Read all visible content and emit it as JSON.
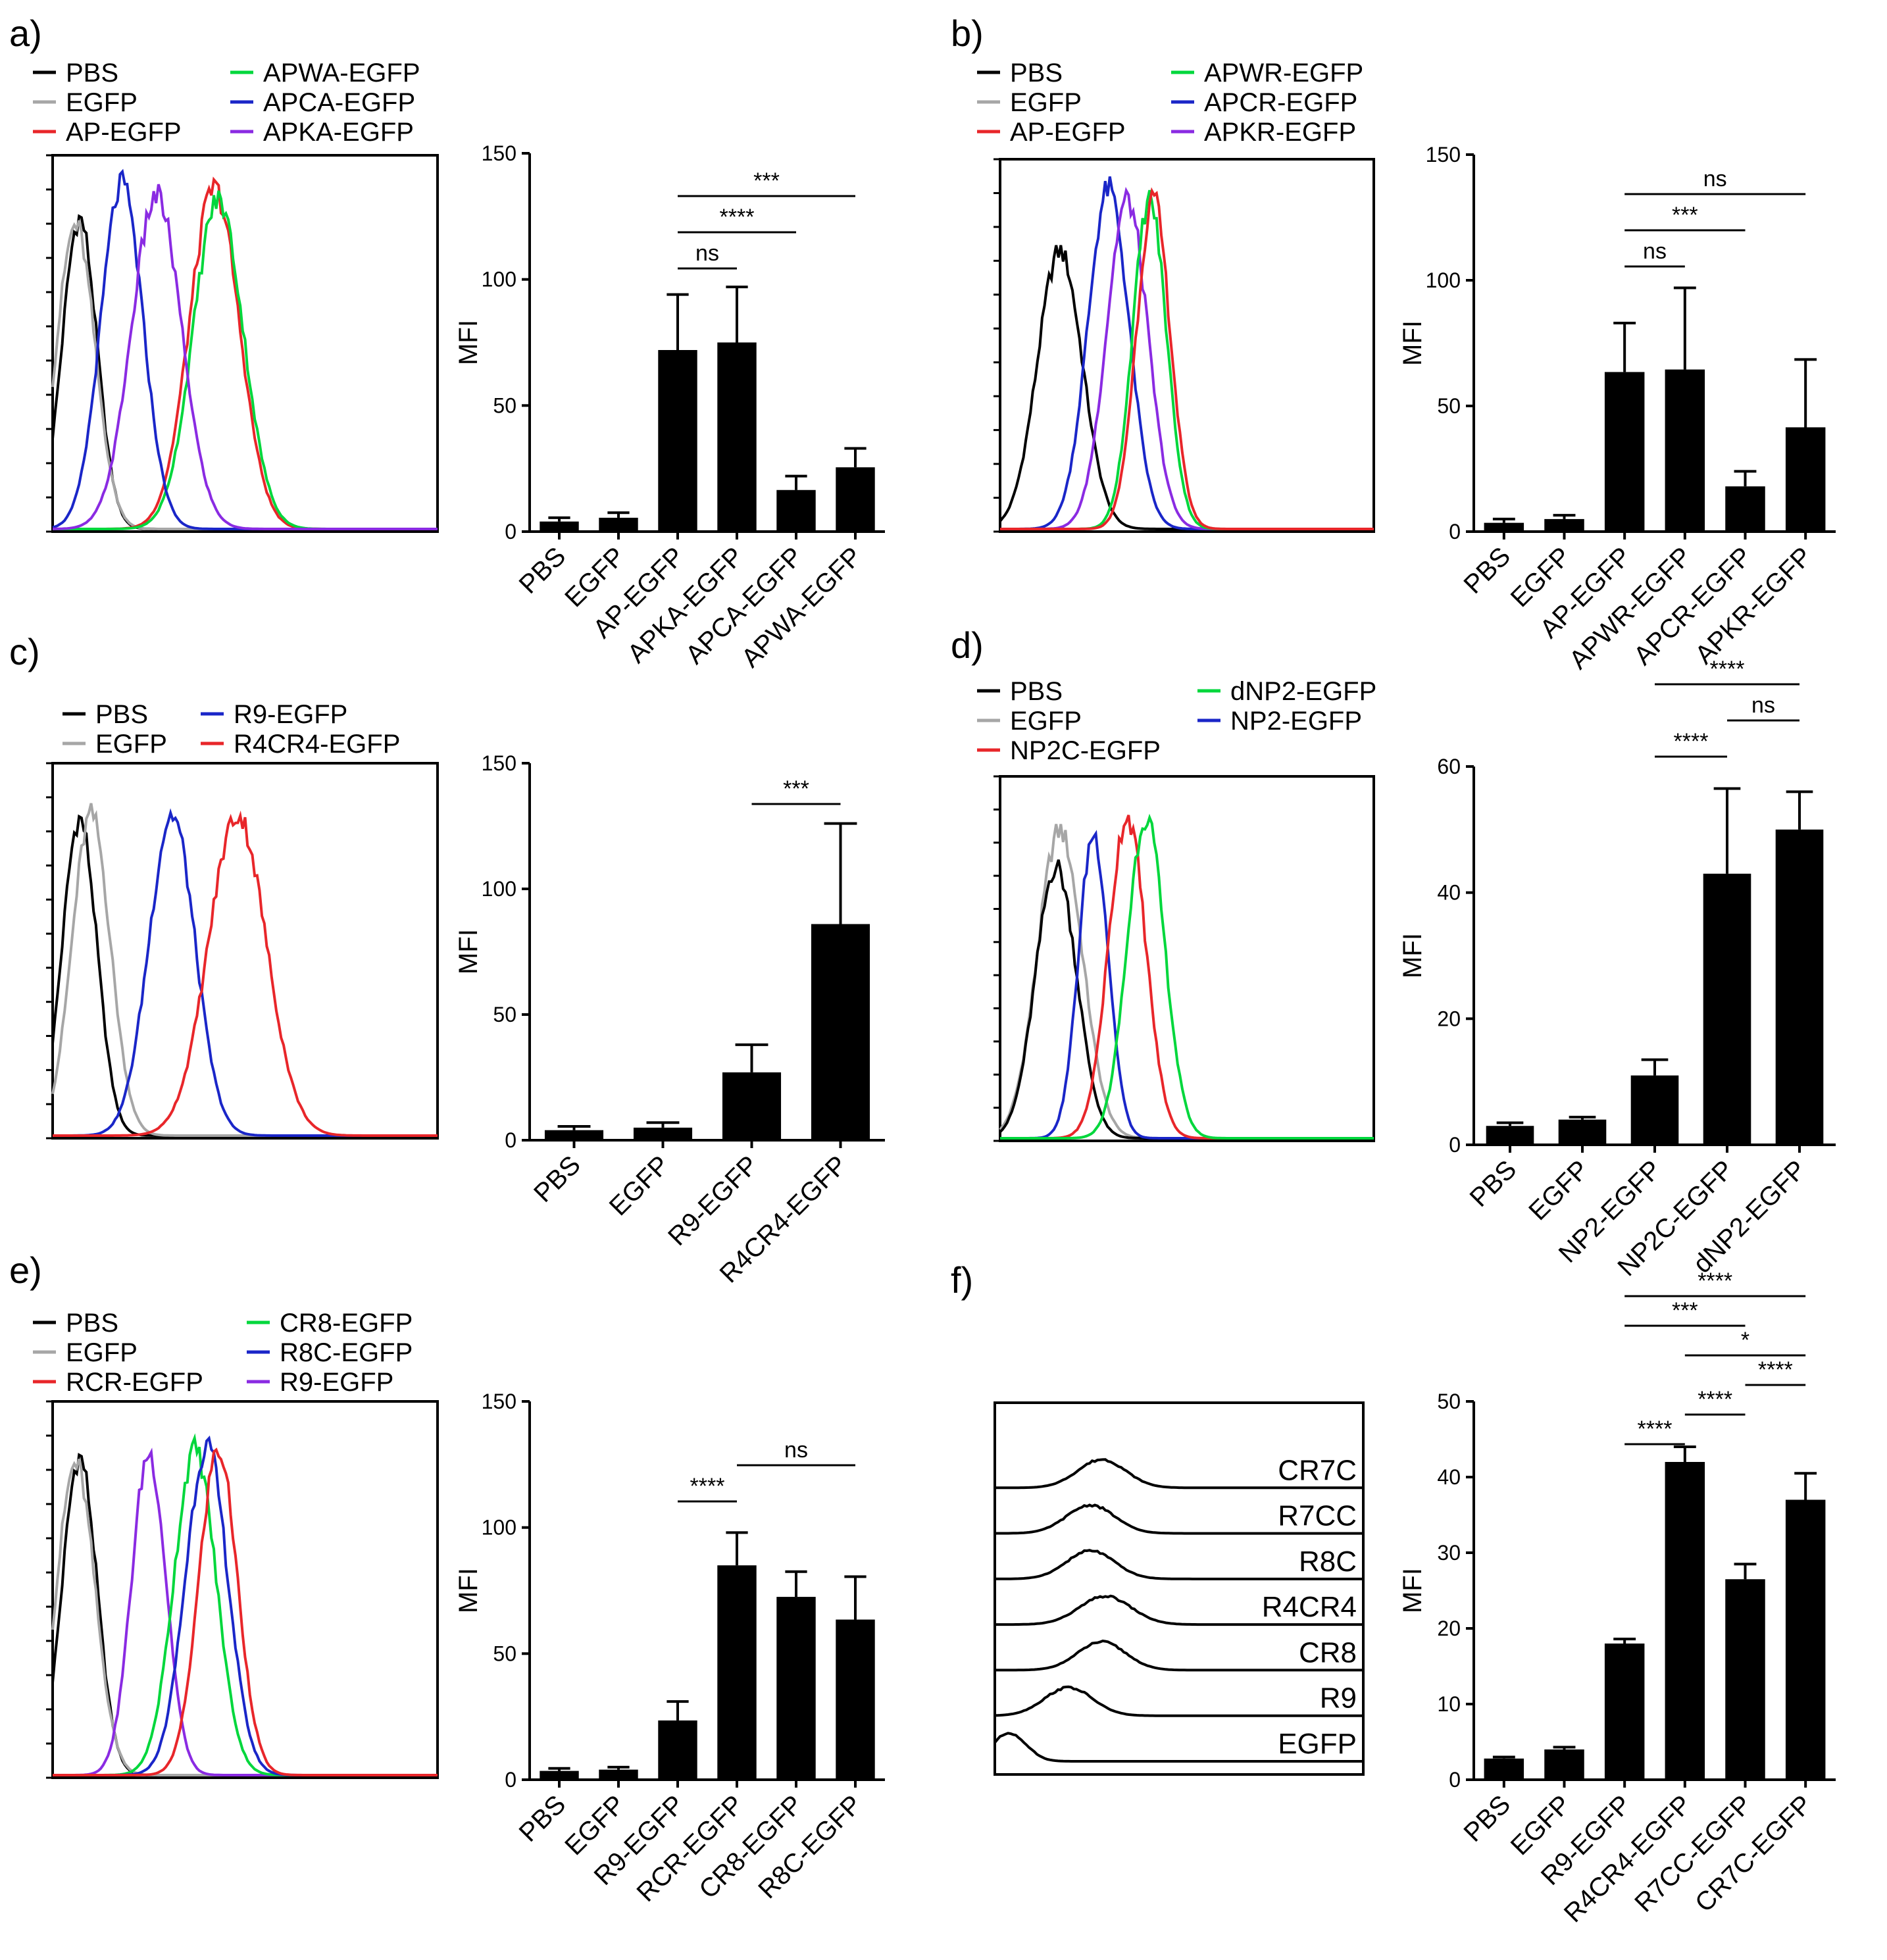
{
  "colors": {
    "PBS": "#000000",
    "EGFP": "#a6a6a6",
    "red": "#e8262a",
    "green": "#00d73c",
    "blue": "#1a26c8",
    "purple": "#8a2be2",
    "bar": "#000000"
  },
  "chart_data": [
    {
      "panel": "a)",
      "type": "line",
      "legend": [
        "PBS",
        "EGFP",
        "AP-EGFP",
        "APWA-EGFP",
        "APCA-EGFP",
        "APKA-EGFP"
      ],
      "series": [
        {
          "name": "PBS",
          "color": "PBS",
          "peak": 0.07,
          "width": 0.045,
          "height": 0.84
        },
        {
          "name": "EGFP",
          "color": "EGFP",
          "peak": 0.06,
          "width": 0.05,
          "height": 0.82
        },
        {
          "name": "AP-EGFP",
          "color": "red",
          "peak": 0.42,
          "width": 0.065,
          "height": 0.92
        },
        {
          "name": "APWA-EGFP",
          "color": "green",
          "peak": 0.43,
          "width": 0.065,
          "height": 0.89
        },
        {
          "name": "APCA-EGFP",
          "color": "blue",
          "peak": 0.18,
          "width": 0.055,
          "height": 0.93
        },
        {
          "name": "APKA-EGFP",
          "color": "purple",
          "peak": 0.27,
          "width": 0.065,
          "height": 0.9
        }
      ]
    },
    {
      "panel": "a)",
      "type": "bar",
      "ylabel": "MFI",
      "ylim": [
        0,
        150
      ],
      "yticks": [
        0,
        50,
        100,
        150
      ],
      "categories": [
        "PBS",
        "EGFP",
        "AP-EGFP",
        "APKA-EGFP",
        "APCA-EGFP",
        "APWA-EGFP"
      ],
      "values": [
        4,
        5.5,
        72,
        75,
        16.5,
        25.5
      ],
      "errors": [
        1.5,
        2,
        22,
        22,
        5.5,
        7.5
      ],
      "significance": [
        {
          "from": 2,
          "to": 3,
          "label": "ns"
        },
        {
          "from": 2,
          "to": 4,
          "label": "****"
        },
        {
          "from": 2,
          "to": 5,
          "label": "***"
        }
      ]
    },
    {
      "panel": "b)",
      "type": "line",
      "legend": [
        "PBS",
        "EGFP",
        "AP-EGFP",
        "APWR-EGFP",
        "APCR-EGFP",
        "APKR-EGFP"
      ],
      "series": [
        {
          "name": "PBS",
          "color": "PBS",
          "peak": 0.16,
          "width": 0.06,
          "height": 0.76
        },
        {
          "name": "APCR-EGFP",
          "color": "blue",
          "peak": 0.29,
          "width": 0.055,
          "height": 0.93
        },
        {
          "name": "APKR-EGFP",
          "color": "purple",
          "peak": 0.34,
          "width": 0.055,
          "height": 0.9
        },
        {
          "name": "APWR-EGFP",
          "color": "green",
          "peak": 0.4,
          "width": 0.045,
          "height": 0.9
        },
        {
          "name": "AP-EGFP",
          "color": "red",
          "peak": 0.41,
          "width": 0.045,
          "height": 0.9
        }
      ]
    },
    {
      "panel": "b)",
      "type": "bar",
      "ylabel": "MFI",
      "ylim": [
        0,
        150
      ],
      "yticks": [
        0,
        50,
        100,
        150
      ],
      "categories": [
        "PBS",
        "EGFP",
        "AP-EGFP",
        "APWR-EGFP",
        "APCR-EGFP",
        "APKR-EGFP"
      ],
      "values": [
        3.5,
        5,
        63.5,
        64.5,
        18,
        41.5
      ],
      "errors": [
        1.5,
        1.5,
        19.5,
        32.5,
        6,
        27
      ],
      "significance": [
        {
          "from": 2,
          "to": 3,
          "label": "ns"
        },
        {
          "from": 2,
          "to": 4,
          "label": "***"
        },
        {
          "from": 2,
          "to": 5,
          "label": "ns"
        }
      ]
    },
    {
      "panel": "c)",
      "type": "line",
      "legend": [
        "PBS",
        "EGFP",
        "R9-EGFP",
        "R4CR4-EGFP"
      ],
      "series": [
        {
          "name": "PBS",
          "color": "PBS",
          "peak": 0.07,
          "width": 0.045,
          "height": 0.86
        },
        {
          "name": "EGFP",
          "color": "EGFP",
          "peak": 0.1,
          "width": 0.05,
          "height": 0.87
        },
        {
          "name": "R9-EGFP",
          "color": "blue",
          "peak": 0.31,
          "width": 0.06,
          "height": 0.87
        },
        {
          "name": "R4CR4-EGFP",
          "color": "red",
          "peak": 0.48,
          "width": 0.075,
          "height": 0.87
        }
      ]
    },
    {
      "panel": "c)",
      "type": "bar",
      "ylabel": "MFI",
      "ylim": [
        0,
        150
      ],
      "yticks": [
        0,
        50,
        100,
        150
      ],
      "categories": [
        "PBS",
        "EGFP",
        "R9-EGFP",
        "R4CR4-EGFP"
      ],
      "values": [
        4,
        5,
        27,
        86
      ],
      "errors": [
        1.5,
        2,
        11,
        40
      ],
      "significance": [
        {
          "from": 2,
          "to": 3,
          "label": "***"
        }
      ]
    },
    {
      "panel": "d)",
      "type": "line",
      "legend": [
        "PBS",
        "EGFP",
        "NP2C-EGFP",
        "dNP2-EGFP",
        "NP2-EGFP"
      ],
      "series": [
        {
          "name": "EGFP",
          "color": "EGFP",
          "peak": 0.16,
          "width": 0.06,
          "height": 0.86
        },
        {
          "name": "PBS",
          "color": "PBS",
          "peak": 0.15,
          "width": 0.055,
          "height": 0.76
        },
        {
          "name": "NP2-EGFP",
          "color": "blue",
          "peak": 0.25,
          "width": 0.04,
          "height": 0.85
        },
        {
          "name": "NP2C-EGFP",
          "color": "red",
          "peak": 0.34,
          "width": 0.05,
          "height": 0.9
        },
        {
          "name": "dNP2-EGFP",
          "color": "green",
          "peak": 0.39,
          "width": 0.05,
          "height": 0.9
        }
      ]
    },
    {
      "panel": "d)",
      "type": "bar",
      "ylabel": "MFI",
      "ylim": [
        0,
        60
      ],
      "yticks": [
        0,
        20,
        40,
        60
      ],
      "categories": [
        "PBS",
        "EGFP",
        "NP2-EGFP",
        "NP2C-EGFP",
        "dNP2-EGFP"
      ],
      "values": [
        3,
        4,
        11,
        43,
        50
      ],
      "errors": [
        0.5,
        0.4,
        2.5,
        13.5,
        6
      ],
      "significance": [
        {
          "from": 2,
          "to": 3,
          "label": "****"
        },
        {
          "from": 3,
          "to": 4,
          "label": "ns"
        },
        {
          "from": 2,
          "to": 4,
          "label": "****"
        }
      ]
    },
    {
      "panel": "e)",
      "type": "line",
      "legend": [
        "PBS",
        "EGFP",
        "RCR-EGFP",
        "CR8-EGFP",
        "R8C-EGFP",
        "R9-EGFP"
      ],
      "series": [
        {
          "name": "PBS",
          "color": "PBS",
          "peak": 0.07,
          "width": 0.045,
          "height": 0.86
        },
        {
          "name": "EGFP",
          "color": "EGFP",
          "peak": 0.06,
          "width": 0.05,
          "height": 0.84
        },
        {
          "name": "R9-EGFP",
          "color": "purple",
          "peak": 0.25,
          "width": 0.045,
          "height": 0.87
        },
        {
          "name": "CR8-EGFP",
          "color": "green",
          "peak": 0.37,
          "width": 0.055,
          "height": 0.88
        },
        {
          "name": "R8C-EGFP",
          "color": "blue",
          "peak": 0.4,
          "width": 0.055,
          "height": 0.89
        },
        {
          "name": "RCR-EGFP",
          "color": "red",
          "peak": 0.43,
          "width": 0.05,
          "height": 0.88
        }
      ]
    },
    {
      "panel": "e)",
      "type": "bar",
      "ylabel": "MFI",
      "ylim": [
        0,
        150
      ],
      "yticks": [
        0,
        50,
        100,
        150
      ],
      "categories": [
        "PBS",
        "EGFP",
        "R9-EGFP",
        "RCR-EGFP",
        "CR8-EGFP",
        "R8C-EGFP"
      ],
      "values": [
        3.5,
        4,
        23.5,
        85,
        72.5,
        63.5
      ],
      "errors": [
        1,
        1,
        7.5,
        13,
        10,
        17
      ],
      "significance": [
        {
          "from": 2,
          "to": 3,
          "label": "****"
        },
        {
          "from": 3,
          "to": 5,
          "label": "ns"
        }
      ]
    },
    {
      "panel": "f)",
      "type": "line",
      "series": [
        {
          "name": "CR7C",
          "peak": 0.29,
          "width": 0.065
        },
        {
          "name": "R7CC",
          "peak": 0.26,
          "width": 0.065
        },
        {
          "name": "R8C",
          "peak": 0.26,
          "width": 0.065
        },
        {
          "name": "R4CR4",
          "peak": 0.3,
          "width": 0.07
        },
        {
          "name": "CR8",
          "peak": 0.29,
          "width": 0.065
        },
        {
          "name": "R9",
          "peak": 0.2,
          "width": 0.065
        },
        {
          "name": "EGFP",
          "peak": 0.04,
          "width": 0.045
        }
      ]
    },
    {
      "panel": "f)",
      "type": "bar",
      "ylabel": "MFI",
      "ylim": [
        0,
        50
      ],
      "yticks": [
        0,
        10,
        20,
        30,
        40,
        50
      ],
      "categories": [
        "PBS",
        "EGFP",
        "R9-EGFP",
        "R4CR4-EGFP",
        "R7CC-EGFP",
        "CR7C-EGFP"
      ],
      "values": [
        2.8,
        4,
        18,
        42,
        26.5,
        37
      ],
      "errors": [
        0.2,
        0.3,
        0.6,
        2,
        2,
        3.5
      ],
      "significance": [
        {
          "from": 2,
          "to": 3,
          "label": "****"
        },
        {
          "from": 3,
          "to": 4,
          "label": "****"
        },
        {
          "from": 4,
          "to": 5,
          "label": "****"
        },
        {
          "from": 3,
          "to": 5,
          "label": "*"
        },
        {
          "from": 2,
          "to": 4,
          "label": "***"
        },
        {
          "from": 2,
          "to": 5,
          "label": "****"
        }
      ]
    }
  ]
}
